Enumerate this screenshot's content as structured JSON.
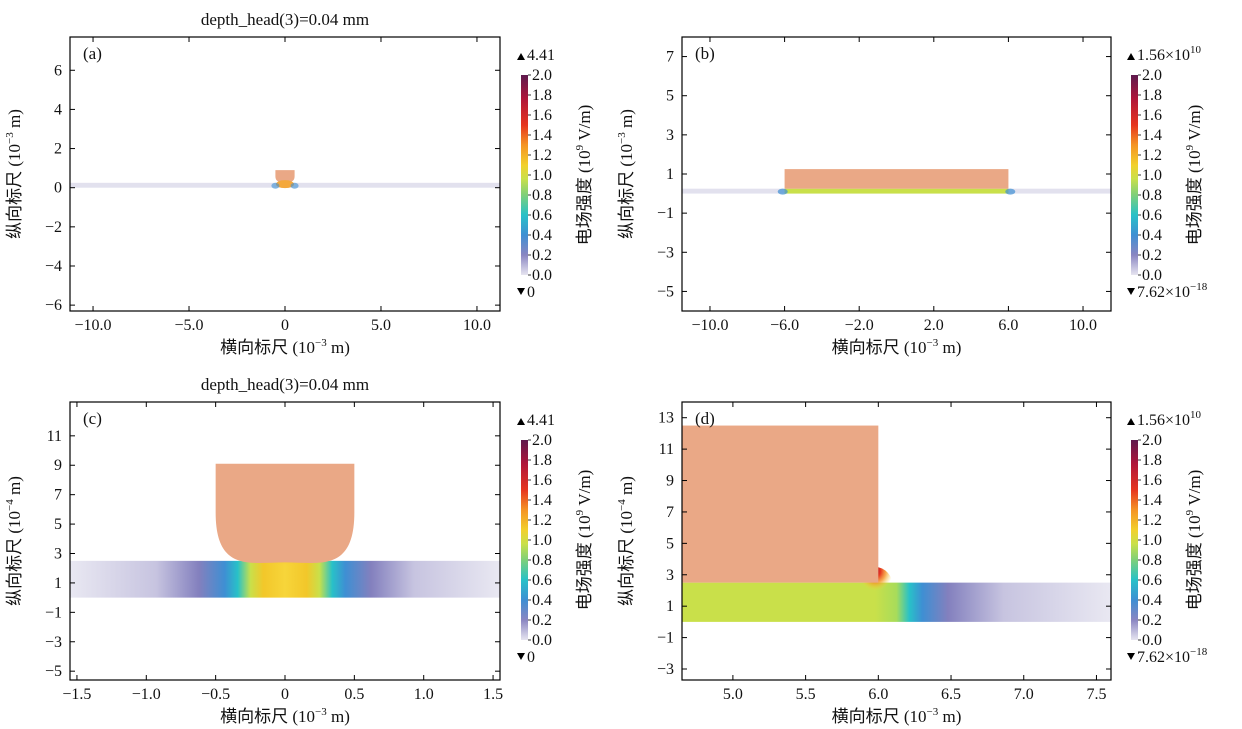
{
  "figure": {
    "ylabel_text": "纵向标尺",
    "xlabel_text": "横向标尺",
    "cbar_label_text": "电场强度",
    "cbar_label_unit": "(10",
    "cbar_label_exp": "9",
    "cbar_label_tail": " V/m)",
    "x_unit_base": "(10",
    "x_unit_exp": "−3",
    "x_unit_tail": " m)"
  },
  "chart_data": [
    {
      "panel_label": "(a)",
      "title": "depth_head(3)=0.04 mm",
      "type": "heatmap",
      "xlim": [
        -11.2,
        11.2
      ],
      "ylim": [
        -6.3,
        7.7
      ],
      "x_ticks": [
        -10,
        -5,
        0,
        5,
        10
      ],
      "x_tick_labels": [
        "−10.0",
        "−5.0",
        "0",
        "5.0",
        "10.0"
      ],
      "y_ticks": [
        -6,
        -4,
        -2,
        0,
        2,
        4,
        6
      ],
      "y_tick_labels": [
        "−6",
        "−4",
        "−2",
        "0",
        "2",
        "4",
        "6"
      ],
      "y_unit_exp": "−3",
      "geometry": "curved",
      "cbar_max": "4.41",
      "cbar_min": "0",
      "cbar_ticks": [
        "2.0",
        "1.8",
        "1.6",
        "1.4",
        "1.2",
        "1.0",
        "0.8",
        "0.6",
        "0.4",
        "0.2",
        "0.0"
      ]
    },
    {
      "panel_label": "(b)",
      "title": "",
      "type": "heatmap",
      "xlim": [
        -11.5,
        11.5
      ],
      "ylim": [
        -6.0,
        8.0
      ],
      "x_ticks": [
        -10,
        -6,
        -2,
        2,
        6,
        10
      ],
      "x_tick_labels": [
        "−10.0",
        "−6.0",
        "−2.0",
        "2.0",
        "6.0",
        "10.0"
      ],
      "y_ticks": [
        -5,
        -3,
        -1,
        1,
        3,
        5,
        7
      ],
      "y_tick_labels": [
        "−5",
        "−3",
        "−1",
        "1",
        "3",
        "5",
        "7"
      ],
      "y_unit_exp": "−3",
      "geometry": "flat",
      "cbar_max": "1.56×10",
      "cbar_max_exp": "10",
      "cbar_min": "7.62×10",
      "cbar_min_exp": "−18",
      "cbar_ticks": [
        "2.0",
        "1.8",
        "1.6",
        "1.4",
        "1.2",
        "1.0",
        "0.8",
        "0.6",
        "0.4",
        "0.2",
        "0.0"
      ]
    },
    {
      "panel_label": "(c)",
      "title": "depth_head(3)=0.04 mm",
      "type": "heatmap",
      "xlim": [
        -1.55,
        1.55
      ],
      "ylim": [
        -5.6,
        13.3
      ],
      "x_ticks": [
        -1.5,
        -1.0,
        -0.5,
        0,
        0.5,
        1.0,
        1.5
      ],
      "x_tick_labels": [
        "−1.5",
        "−1.0",
        "−0.5",
        "0",
        "0.5",
        "1.0",
        "1.5"
      ],
      "y_ticks": [
        -5,
        -3,
        -1,
        1,
        3,
        5,
        7,
        9,
        11
      ],
      "y_tick_labels": [
        "−5",
        "−3",
        "−1",
        "1",
        "3",
        "5",
        "7",
        "9",
        "11"
      ],
      "y_unit_exp": "−4",
      "geometry": "curved_zoom",
      "cbar_max": "4.41",
      "cbar_min": "0",
      "cbar_ticks": [
        "2.0",
        "1.8",
        "1.6",
        "1.4",
        "1.2",
        "1.0",
        "0.8",
        "0.6",
        "0.4",
        "0.2",
        "0.0"
      ]
    },
    {
      "panel_label": "(d)",
      "title": "",
      "type": "heatmap",
      "xlim": [
        4.65,
        7.6
      ],
      "ylim": [
        -3.7,
        14.0
      ],
      "x_ticks": [
        5.0,
        5.5,
        6.0,
        6.5,
        7.0,
        7.5
      ],
      "x_tick_labels": [
        "5.0",
        "5.5",
        "6.0",
        "6.5",
        "7.0",
        "7.5"
      ],
      "y_ticks": [
        -3,
        -1,
        1,
        3,
        5,
        7,
        9,
        11,
        13
      ],
      "y_tick_labels": [
        "−3",
        "−1",
        "1",
        "3",
        "5",
        "7",
        "9",
        "11",
        "13"
      ],
      "y_unit_exp": "−4",
      "geometry": "flat_zoom",
      "cbar_max": "1.56×10",
      "cbar_max_exp": "10",
      "cbar_min": "7.62×10",
      "cbar_min_exp": "−18",
      "cbar_ticks": [
        "2.0",
        "1.8",
        "1.6",
        "1.4",
        "1.2",
        "1.0",
        "0.8",
        "0.6",
        "0.4",
        "0.2",
        "0.0"
      ]
    }
  ]
}
